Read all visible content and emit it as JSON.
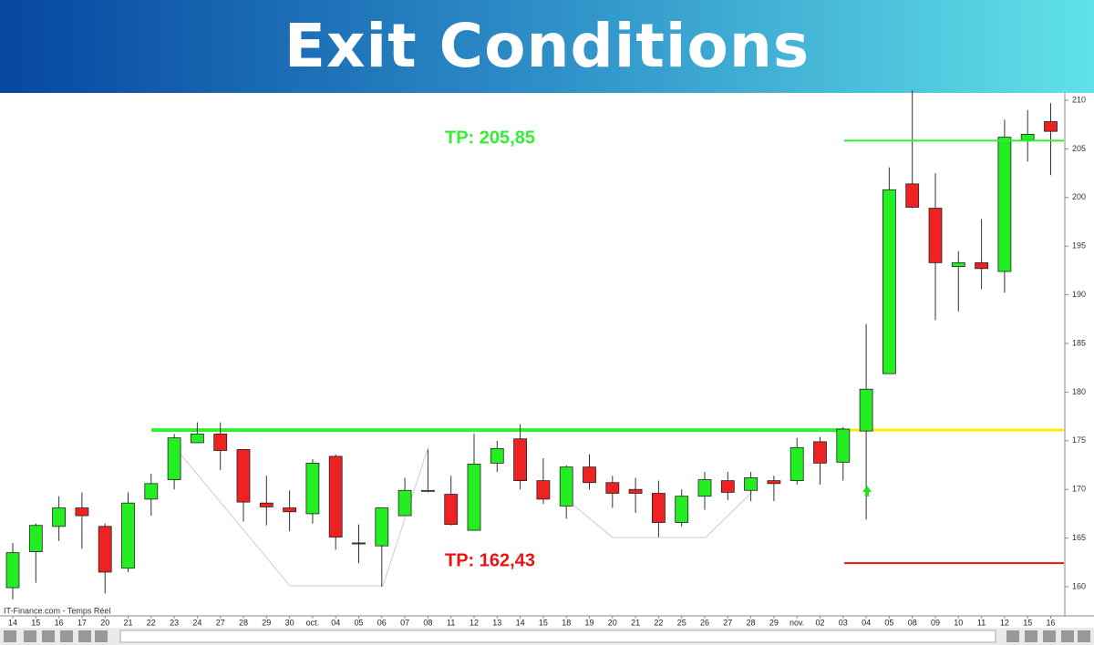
{
  "chart_data": {
    "type": "candlestick",
    "title": "Exit Conditions",
    "source": "IT-Finance.com - Temps Réel",
    "categories": [
      "14",
      "15",
      "16",
      "17",
      "20",
      "21",
      "22",
      "23",
      "24",
      "27",
      "28",
      "29",
      "30",
      "oct.",
      "04",
      "05",
      "06",
      "07",
      "08",
      "11",
      "12",
      "13",
      "14",
      "15",
      "18",
      "19",
      "20",
      "21",
      "22",
      "25",
      "26",
      "27",
      "28",
      "29",
      "nov.",
      "02",
      "03",
      "04",
      "05",
      "08",
      "09",
      "10",
      "11",
      "12",
      "15",
      "16"
    ],
    "open": [
      159.9,
      163.6,
      166.2,
      168.1,
      166.2,
      161.9,
      169.0,
      171.0,
      174.8,
      175.7,
      174.1,
      168.6,
      168.1,
      167.5,
      173.4,
      164.5,
      164.2,
      167.3,
      169.8,
      169.5,
      165.8,
      172.7,
      175.2,
      170.9,
      168.3,
      172.3,
      170.7,
      170.0,
      169.6,
      166.6,
      169.3,
      170.9,
      169.9,
      170.9,
      170.9,
      174.9,
      172.8,
      176.0,
      181.9,
      201.4,
      198.9,
      192.9,
      193.3,
      192.4,
      205.9,
      207.8
    ],
    "high": [
      164.5,
      166.5,
      169.3,
      169.7,
      166.5,
      169.7,
      171.6,
      175.7,
      176.9,
      176.9,
      174.1,
      171.4,
      169.9,
      173.1,
      173.6,
      166.4,
      168.1,
      171.2,
      174.1,
      171.4,
      175.7,
      175.0,
      176.7,
      173.2,
      172.5,
      173.6,
      171.4,
      171.2,
      170.9,
      170.0,
      171.8,
      171.8,
      171.8,
      171.4,
      175.3,
      175.4,
      176.4,
      187.0,
      203.1,
      211.0,
      202.5,
      194.5,
      197.8,
      208.0,
      209.0,
      209.7
    ],
    "low": [
      158.7,
      160.4,
      164.7,
      163.9,
      159.3,
      161.5,
      167.3,
      170.0,
      174.8,
      172.0,
      166.7,
      166.3,
      165.7,
      166.5,
      163.8,
      162.4,
      160.0,
      167.3,
      169.7,
      166.3,
      165.8,
      171.8,
      170.0,
      168.5,
      167.0,
      170.0,
      168.1,
      167.6,
      165.1,
      166.2,
      167.9,
      168.9,
      168.8,
      168.8,
      170.5,
      170.5,
      170.9,
      166.9,
      181.9,
      198.9,
      187.4,
      188.3,
      190.6,
      190.2,
      203.7,
      202.3
    ],
    "close": [
      163.5,
      166.3,
      168.1,
      167.3,
      161.5,
      168.6,
      170.6,
      175.3,
      175.7,
      174.0,
      168.7,
      168.2,
      167.7,
      172.7,
      165.1,
      164.4,
      168.1,
      169.9,
      169.9,
      166.4,
      172.6,
      174.2,
      170.9,
      169.0,
      172.3,
      170.7,
      169.6,
      169.6,
      166.6,
      169.3,
      171.0,
      169.7,
      171.2,
      170.6,
      174.3,
      172.7,
      176.2,
      180.3,
      200.8,
      199.0,
      193.3,
      193.3,
      192.7,
      206.2,
      206.5,
      206.8
    ],
    "up_color": "#22ee22",
    "down_color": "#ee2222",
    "ylim": [
      157.1,
      210.75
    ],
    "yticks": [
      160,
      165,
      170,
      175,
      180,
      185,
      190,
      195,
      200,
      205,
      210
    ],
    "levels": [
      {
        "value": 176.1,
        "color": "#33ee33"
      },
      {
        "value": 176.1,
        "color": "#ffee00"
      }
    ],
    "take_profit": [
      {
        "value": 205.85,
        "label": "TP: 205,85",
        "color": "#33ee33"
      },
      {
        "value": 162.43,
        "label": "TP: 162,43",
        "color": "#ee1111"
      }
    ]
  }
}
